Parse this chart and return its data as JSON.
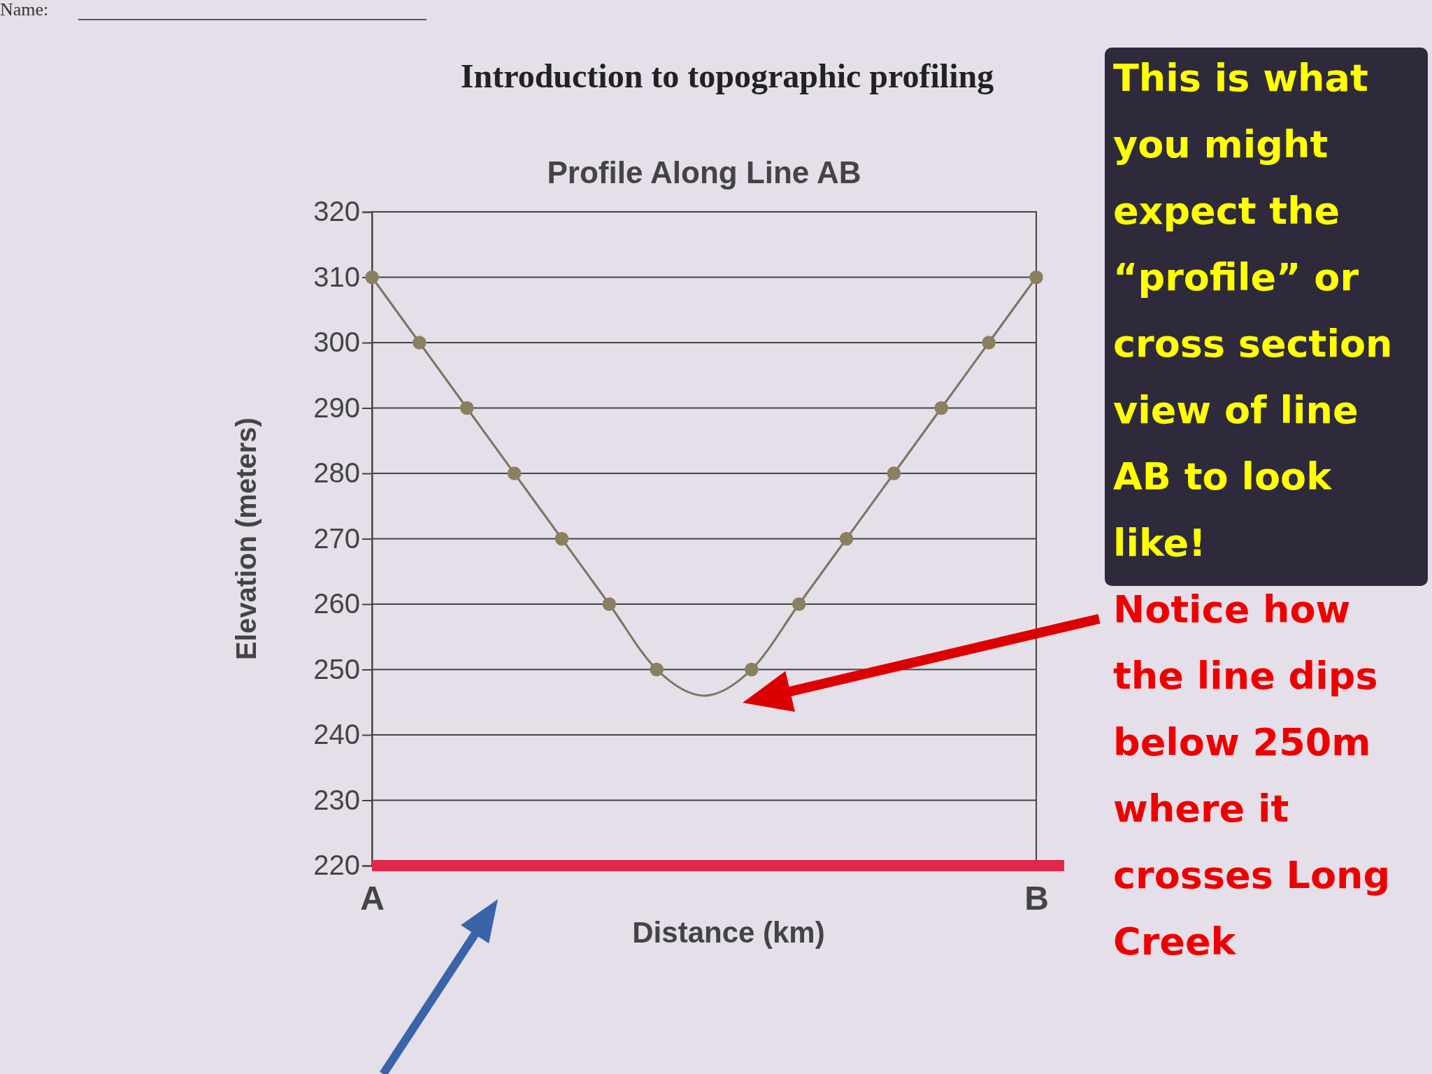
{
  "chart_data": {
    "type": "line",
    "title": "Profile Along Line AB",
    "subtitle": "Introduction to topographic profiling",
    "xlabel": "Distance (km)",
    "ylabel": "Elevation (meters)",
    "categories": [
      "A",
      null,
      null,
      null,
      null,
      null,
      null,
      null,
      null,
      null,
      null,
      null,
      null,
      null,
      "B"
    ],
    "series": [
      {
        "color": "#7a7462",
        "marker": "none",
        "values": [
          310,
          300,
          290,
          280,
          270,
          260,
          250,
          246,
          250,
          260,
          270,
          280,
          290,
          300,
          310
        ]
      },
      {
        "type": "scatter",
        "color": "#8a8060",
        "marker": "circle",
        "values": [
          310,
          300,
          290,
          280,
          270,
          260,
          250,
          null,
          250,
          260,
          270,
          280,
          290,
          300,
          310
        ]
      }
    ],
    "ref_lines": [
      {
        "axis": "y",
        "value": 220,
        "color": "#e0284a"
      }
    ],
    "ylim": [
      220,
      320
    ],
    "yticks": [
      220,
      230,
      240,
      250,
      260,
      270,
      280,
      290,
      300,
      310,
      320
    ],
    "grid": "y",
    "annotations": [
      "Name:",
      "This is what you might expect the “profile” or cross section view of line AB to look like!",
      "Notice how the line dips below 250m where it crosses Long Creek"
    ]
  }
}
